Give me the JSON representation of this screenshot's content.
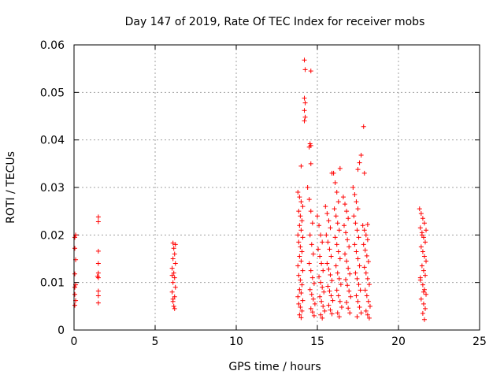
{
  "chart_data": {
    "type": "scatter",
    "title": "Day 147 of 2019, Rate Of TEC Index for receiver mobs",
    "xlabel": "GPS time / hours",
    "ylabel": "ROTI / TECUs",
    "xlim": [
      0,
      25
    ],
    "ylim": [
      0,
      0.06
    ],
    "xticks": [
      0,
      5,
      10,
      15,
      20,
      25
    ],
    "xtick_labels": [
      "0",
      "5",
      "10",
      "15",
      "20",
      "25"
    ],
    "yticks": [
      0,
      0.01,
      0.02,
      0.03,
      0.04,
      0.05,
      0.06
    ],
    "ytick_labels": [
      "0",
      "0.01",
      "0.02",
      "0.03",
      "0.04",
      "0.05",
      "0.06"
    ],
    "grid": true,
    "marker": "+",
    "marker_color": "#ff0000",
    "series": [
      {
        "name": "ROTI",
        "points": [
          [
            0.05,
            0.0195
          ],
          [
            0.05,
            0.0172
          ],
          [
            0.1,
            0.0148
          ],
          [
            0.05,
            0.0118
          ],
          [
            0.1,
            0.0095
          ],
          [
            0.05,
            0.0075
          ],
          [
            0.1,
            0.0062
          ],
          [
            0.05,
            0.0052
          ],
          [
            0.1,
            0.02
          ],
          [
            0.05,
            0.009
          ],
          [
            1.5,
            0.0238
          ],
          [
            1.5,
            0.0228
          ],
          [
            1.5,
            0.0166
          ],
          [
            1.5,
            0.014
          ],
          [
            1.5,
            0.012
          ],
          [
            1.5,
            0.011
          ],
          [
            1.5,
            0.0082
          ],
          [
            1.5,
            0.0072
          ],
          [
            1.5,
            0.0057
          ],
          [
            1.45,
            0.0113
          ],
          [
            6.1,
            0.0183
          ],
          [
            6.15,
            0.0172
          ],
          [
            6.2,
            0.016
          ],
          [
            6.1,
            0.015
          ],
          [
            6.25,
            0.014
          ],
          [
            6.05,
            0.013
          ],
          [
            6.15,
            0.012
          ],
          [
            6.2,
            0.011
          ],
          [
            6.1,
            0.01
          ],
          [
            6.25,
            0.009
          ],
          [
            6.05,
            0.008
          ],
          [
            6.2,
            0.007
          ],
          [
            6.1,
            0.006
          ],
          [
            6.15,
            0.005
          ],
          [
            6.2,
            0.0045
          ],
          [
            6.25,
            0.018
          ],
          [
            6.05,
            0.0115
          ],
          [
            6.1,
            0.0065
          ],
          [
            14.2,
            0.0568
          ],
          [
            14.25,
            0.0548
          ],
          [
            14.6,
            0.0545
          ],
          [
            14.2,
            0.0488
          ],
          [
            14.25,
            0.0478
          ],
          [
            14.2,
            0.0462
          ],
          [
            14.25,
            0.0448
          ],
          [
            14.2,
            0.044
          ],
          [
            14.55,
            0.0392
          ],
          [
            14.6,
            0.0388
          ],
          [
            14.5,
            0.0385
          ],
          [
            17.85,
            0.0428
          ],
          [
            17.7,
            0.0368
          ],
          [
            17.6,
            0.0352
          ],
          [
            17.5,
            0.0338
          ],
          [
            17.9,
            0.033
          ],
          [
            14.0,
            0.0345
          ],
          [
            14.6,
            0.035
          ],
          [
            16.4,
            0.034
          ],
          [
            15.9,
            0.033
          ],
          [
            13.8,
            0.029
          ],
          [
            13.9,
            0.028
          ],
          [
            14.0,
            0.027
          ],
          [
            14.1,
            0.026
          ],
          [
            13.85,
            0.025
          ],
          [
            13.95,
            0.024
          ],
          [
            14.05,
            0.023
          ],
          [
            13.9,
            0.022
          ],
          [
            14.0,
            0.021
          ],
          [
            13.8,
            0.02
          ],
          [
            14.1,
            0.0195
          ],
          [
            13.85,
            0.0185
          ],
          [
            13.95,
            0.0175
          ],
          [
            14.05,
            0.0165
          ],
          [
            13.9,
            0.0155
          ],
          [
            14.0,
            0.0145
          ],
          [
            13.8,
            0.0135
          ],
          [
            14.1,
            0.0125
          ],
          [
            13.85,
            0.0115
          ],
          [
            13.95,
            0.0105
          ],
          [
            14.05,
            0.0095
          ],
          [
            13.9,
            0.0085
          ],
          [
            14.0,
            0.0078
          ],
          [
            13.8,
            0.007
          ],
          [
            14.1,
            0.0062
          ],
          [
            13.85,
            0.0055
          ],
          [
            13.95,
            0.0048
          ],
          [
            14.05,
            0.004
          ],
          [
            13.9,
            0.0032
          ],
          [
            14.0,
            0.0026
          ],
          [
            14.4,
            0.03
          ],
          [
            14.5,
            0.0275
          ],
          [
            14.6,
            0.025
          ],
          [
            14.7,
            0.0225
          ],
          [
            14.55,
            0.02
          ],
          [
            14.65,
            0.018
          ],
          [
            14.75,
            0.016
          ],
          [
            14.5,
            0.014
          ],
          [
            14.6,
            0.0125
          ],
          [
            14.7,
            0.011
          ],
          [
            14.8,
            0.0098
          ],
          [
            14.55,
            0.0085
          ],
          [
            14.65,
            0.0075
          ],
          [
            14.75,
            0.0065
          ],
          [
            14.85,
            0.0055
          ],
          [
            14.6,
            0.0045
          ],
          [
            14.7,
            0.0038
          ],
          [
            14.8,
            0.003
          ],
          [
            15.0,
            0.024
          ],
          [
            15.1,
            0.022
          ],
          [
            15.2,
            0.02
          ],
          [
            15.3,
            0.0185
          ],
          [
            15.05,
            0.017
          ],
          [
            15.15,
            0.0155
          ],
          [
            15.25,
            0.014
          ],
          [
            15.35,
            0.0125
          ],
          [
            15.1,
            0.0112
          ],
          [
            15.2,
            0.01
          ],
          [
            15.3,
            0.009
          ],
          [
            15.4,
            0.008
          ],
          [
            15.15,
            0.007
          ],
          [
            15.25,
            0.006
          ],
          [
            15.35,
            0.005
          ],
          [
            15.45,
            0.004
          ],
          [
            15.2,
            0.0032
          ],
          [
            15.3,
            0.0025
          ],
          [
            15.5,
            0.026
          ],
          [
            15.6,
            0.0245
          ],
          [
            15.7,
            0.023
          ],
          [
            15.8,
            0.0215
          ],
          [
            15.55,
            0.02
          ],
          [
            15.65,
            0.0185
          ],
          [
            15.75,
            0.017
          ],
          [
            15.85,
            0.0155
          ],
          [
            15.6,
            0.014
          ],
          [
            15.7,
            0.0128
          ],
          [
            15.8,
            0.0116
          ],
          [
            15.9,
            0.0104
          ],
          [
            15.65,
            0.0092
          ],
          [
            15.75,
            0.0082
          ],
          [
            15.85,
            0.0072
          ],
          [
            15.95,
            0.0062
          ],
          [
            15.7,
            0.0052
          ],
          [
            15.8,
            0.0042
          ],
          [
            15.9,
            0.0034
          ],
          [
            16.0,
            0.033
          ],
          [
            16.1,
            0.031
          ],
          [
            16.2,
            0.029
          ],
          [
            16.3,
            0.027
          ],
          [
            16.05,
            0.0255
          ],
          [
            16.15,
            0.024
          ],
          [
            16.25,
            0.0225
          ],
          [
            16.35,
            0.021
          ],
          [
            16.1,
            0.0195
          ],
          [
            16.2,
            0.018
          ],
          [
            16.3,
            0.0165
          ],
          [
            16.4,
            0.015
          ],
          [
            16.15,
            0.0135
          ],
          [
            16.25,
            0.012
          ],
          [
            16.35,
            0.0108
          ],
          [
            16.45,
            0.0096
          ],
          [
            16.2,
            0.0084
          ],
          [
            16.3,
            0.0072
          ],
          [
            16.4,
            0.006
          ],
          [
            16.5,
            0.0048
          ],
          [
            16.25,
            0.0036
          ],
          [
            16.35,
            0.0028
          ],
          [
            16.6,
            0.028
          ],
          [
            16.7,
            0.0265
          ],
          [
            16.8,
            0.025
          ],
          [
            16.9,
            0.0235
          ],
          [
            16.65,
            0.022
          ],
          [
            16.75,
            0.0205
          ],
          [
            16.85,
            0.019
          ],
          [
            16.95,
            0.0175
          ],
          [
            16.7,
            0.016
          ],
          [
            16.8,
            0.0145
          ],
          [
            16.9,
            0.013
          ],
          [
            17.0,
            0.0118
          ],
          [
            16.75,
            0.0106
          ],
          [
            16.85,
            0.0094
          ],
          [
            16.95,
            0.0082
          ],
          [
            17.05,
            0.007
          ],
          [
            16.8,
            0.0058
          ],
          [
            16.9,
            0.0046
          ],
          [
            17.0,
            0.0036
          ],
          [
            17.2,
            0.03
          ],
          [
            17.3,
            0.0285
          ],
          [
            17.4,
            0.027
          ],
          [
            17.5,
            0.0255
          ],
          [
            17.25,
            0.024
          ],
          [
            17.35,
            0.0225
          ],
          [
            17.45,
            0.021
          ],
          [
            17.55,
            0.0195
          ],
          [
            17.3,
            0.018
          ],
          [
            17.4,
            0.0165
          ],
          [
            17.5,
            0.015
          ],
          [
            17.6,
            0.0135
          ],
          [
            17.35,
            0.012
          ],
          [
            17.45,
            0.0108
          ],
          [
            17.55,
            0.0096
          ],
          [
            17.65,
            0.0084
          ],
          [
            17.4,
            0.0072
          ],
          [
            17.5,
            0.006
          ],
          [
            17.6,
            0.0048
          ],
          [
            17.7,
            0.0036
          ],
          [
            17.45,
            0.0028
          ],
          [
            17.8,
            0.022
          ],
          [
            17.9,
            0.021
          ],
          [
            18.0,
            0.02
          ],
          [
            18.1,
            0.019
          ],
          [
            17.85,
            0.018
          ],
          [
            17.95,
            0.0168
          ],
          [
            18.05,
            0.0156
          ],
          [
            18.15,
            0.0144
          ],
          [
            17.9,
            0.0132
          ],
          [
            18.0,
            0.012
          ],
          [
            18.1,
            0.0108
          ],
          [
            18.2,
            0.0096
          ],
          [
            17.95,
            0.0084
          ],
          [
            18.05,
            0.0072
          ],
          [
            18.15,
            0.006
          ],
          [
            18.25,
            0.005
          ],
          [
            18.0,
            0.004
          ],
          [
            18.1,
            0.0032
          ],
          [
            18.2,
            0.0025
          ],
          [
            18.1,
            0.0222
          ],
          [
            21.3,
            0.0255
          ],
          [
            21.4,
            0.0245
          ],
          [
            21.5,
            0.0235
          ],
          [
            21.6,
            0.0225
          ],
          [
            21.35,
            0.0215
          ],
          [
            21.45,
            0.0205
          ],
          [
            21.55,
            0.0195
          ],
          [
            21.65,
            0.0185
          ],
          [
            21.4,
            0.0175
          ],
          [
            21.5,
            0.0165
          ],
          [
            21.6,
            0.0155
          ],
          [
            21.7,
            0.0145
          ],
          [
            21.45,
            0.0135
          ],
          [
            21.55,
            0.0125
          ],
          [
            21.65,
            0.0115
          ],
          [
            21.35,
            0.0105
          ],
          [
            21.5,
            0.0095
          ],
          [
            21.6,
            0.0085
          ],
          [
            21.7,
            0.0075
          ],
          [
            21.4,
            0.0065
          ],
          [
            21.55,
            0.0055
          ],
          [
            21.65,
            0.0045
          ],
          [
            21.5,
            0.0035
          ],
          [
            21.6,
            0.0022
          ],
          [
            21.45,
            0.02
          ],
          [
            21.7,
            0.021
          ],
          [
            21.35,
            0.011
          ],
          [
            21.55,
            0.008
          ]
        ]
      }
    ]
  }
}
